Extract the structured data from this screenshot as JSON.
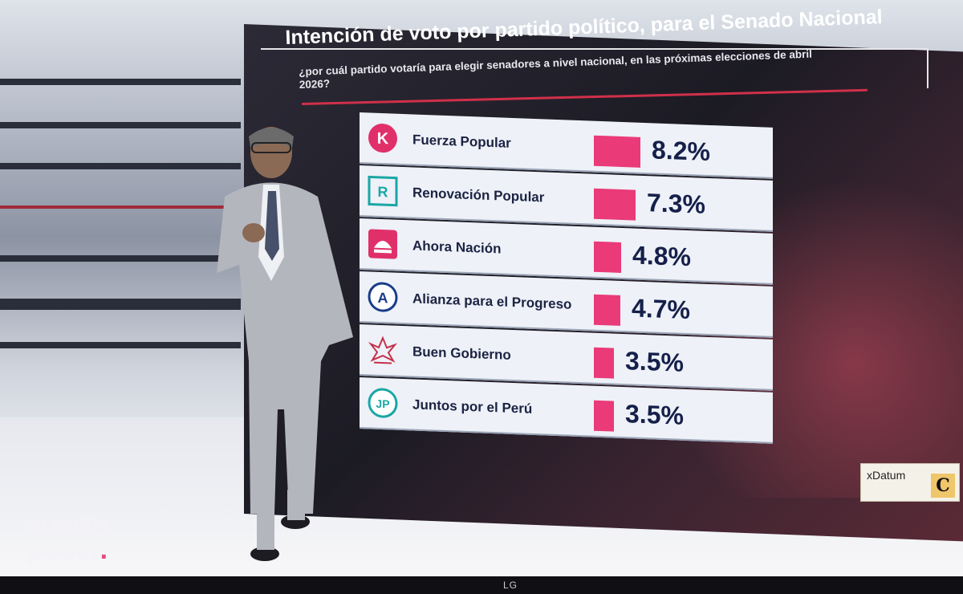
{
  "title": "Intención de voto por partido político, para el Senado Nacional",
  "subtitle": "¿por cuál partido votaría para elegir senadores a nivel nacional, en las próximas elecciones de abril 2026?",
  "source": "Datum",
  "source_mark": "x",
  "publisher_logo_letter": "C",
  "show_logo": {
    "line1": "cuarto",
    "line2": "poder",
    "dot": "."
  },
  "tv_brand": "LG",
  "colors": {
    "bar": "#ea3a78",
    "row_bg": "#eef1f7",
    "text": "#15204a",
    "accent_rule": "#d0304a"
  },
  "chart_data": {
    "type": "bar",
    "orientation": "horizontal",
    "title": "Intención de voto por partido político, para el Senado Nacional",
    "categories": [
      "Fuerza Popular",
      "Renovación Popular",
      "Ahora Nación",
      "Alianza para el Progreso",
      "Buen Gobierno",
      "Juntos por el Perú"
    ],
    "values": [
      8.2,
      7.3,
      4.8,
      4.7,
      3.5,
      3.5
    ],
    "value_labels": [
      "8.2%",
      "7.3%",
      "4.8%",
      "4.7%",
      "3.5%",
      "3.5%"
    ],
    "logos": [
      "fuerza-popular-k-icon",
      "renovacion-popular-r-icon",
      "ahora-nacion-icon",
      "alianza-progreso-a-icon",
      "buen-gobierno-icon",
      "juntos-por-el-peru-jp-icon"
    ],
    "logo_letters": [
      "K",
      "R",
      "",
      "A",
      "",
      "JP"
    ],
    "xlim": [
      0,
      10
    ],
    "grid": false,
    "legend": "none"
  }
}
